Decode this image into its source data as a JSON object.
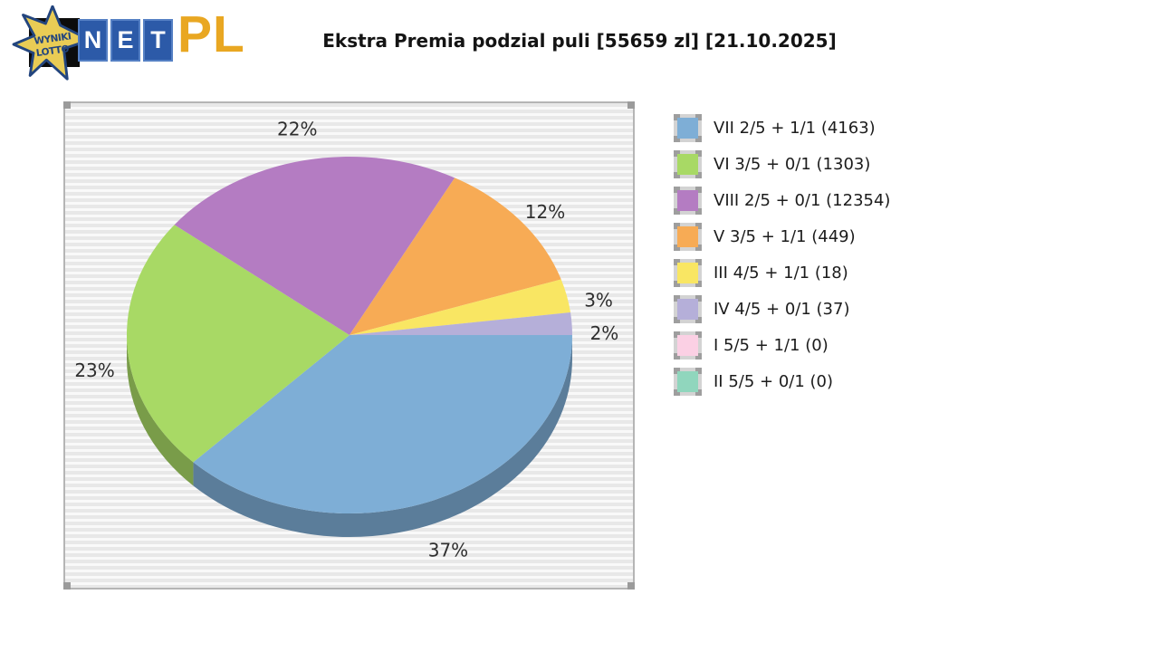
{
  "logo": {
    "star_line1": "WYNIKI",
    "star_line2": "LOTTO",
    "net": [
      "N",
      "E",
      "T"
    ],
    "pl": "PL",
    "colors": {
      "star_fill": "#e9cc55",
      "star_stroke": "#23457e",
      "tile_bg": "#2c5aa8",
      "pl_gold": "#e9a722"
    }
  },
  "title": "Ekstra Premia podzial puli [55659 zl] [21.10.2025]",
  "chart_data": {
    "type": "pie",
    "title": "Ekstra Premia podzial puli [55659 zl] [21.10.2025]",
    "pool_total_label": "55659 zl",
    "date_label": "21.10.2025",
    "label_format": "percent",
    "legend_position": "right",
    "style": "3d-pie",
    "slices": [
      {
        "tier": "VII",
        "match": "2/5 + 1/1",
        "winners": 4163,
        "percent": 37,
        "color": "#7eaed6",
        "legend_label": "VII 2/5 + 1/1 (4163)"
      },
      {
        "tier": "VI",
        "match": "3/5 + 0/1",
        "winners": 1303,
        "percent": 23,
        "color": "#a8d965",
        "legend_label": "VI 3/5 + 0/1 (1303)"
      },
      {
        "tier": "VIII",
        "match": "2/5 + 0/1",
        "winners": 12354,
        "percent": 22,
        "color": "#b47cc2",
        "legend_label": "VIII 2/5 + 0/1 (12354)"
      },
      {
        "tier": "V",
        "match": "3/5 + 1/1",
        "winners": 449,
        "percent": 12,
        "color": "#f7ab55",
        "legend_label": "V 3/5 + 1/1 (449)"
      },
      {
        "tier": "III",
        "match": "4/5 + 1/1",
        "winners": 18,
        "percent": 3,
        "color": "#f9e663",
        "legend_label": "III 4/5 + 1/1 (18)"
      },
      {
        "tier": "IV",
        "match": "4/5 + 0/1",
        "winners": 37,
        "percent": 2,
        "color": "#b5afd9",
        "legend_label": "IV 4/5 + 0/1 (37)"
      },
      {
        "tier": "I",
        "match": "5/5 + 1/1",
        "winners": 0,
        "percent": 0,
        "color": "#fbd0e4",
        "legend_label": "I 5/5 + 1/1 (0)"
      },
      {
        "tier": "II",
        "match": "5/5 + 0/1",
        "winners": 0,
        "percent": 0,
        "color": "#90d6bd",
        "legend_label": "II 5/5 + 0/1 (0)"
      }
    ]
  }
}
